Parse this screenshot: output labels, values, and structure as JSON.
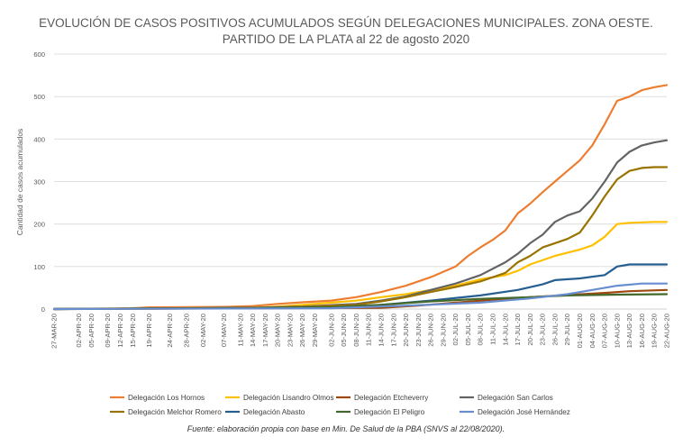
{
  "chart_data": {
    "type": "line",
    "title": "EVOLUCIÓN DE CASOS POSITIVOS ACUMULADOS SEGÚN DELEGACIONES MUNICIPALES. ZONA OESTE.",
    "subtitle": "PARTIDO DE LA PLATA al 22 de agosto 2020",
    "ylabel": "Cantidad de casos acumulados",
    "xlabel": "",
    "ylim": [
      0,
      600
    ],
    "yticks": [
      0,
      100,
      200,
      300,
      400,
      500,
      600
    ],
    "x_start": "2020-03-27",
    "x_end": "2020-08-22",
    "x_tick_labels": [
      "27-MAR-20",
      "02-APR-20",
      "05-APR-20",
      "09-APR-20",
      "12-APR-20",
      "15-APR-20",
      "19-APR-20",
      "24-APR-20",
      "28-APR-20",
      "02-MAY-20",
      "07-MAY-20",
      "11-MAY-20",
      "14-MAY-20",
      "17-MAY-20",
      "20-MAY-20",
      "23-MAY-20",
      "26-MAY-20",
      "29-MAY-20",
      "02-JUN-20",
      "05-JUN-20",
      "08-JUN-20",
      "11-JUN-20",
      "14-JUN-20",
      "17-JUN-20",
      "20-JUN-20",
      "23-JUN-20",
      "26-JUN-20",
      "29-JUN-20",
      "02-JUL-20",
      "05-JUL-20",
      "08-JUL-20",
      "11-JUL-20",
      "14-JUL-20",
      "17-JUL-20",
      "20-JUL-20",
      "23-JUL-20",
      "26-JUL-20",
      "29-JUL-20",
      "01-AUG-20",
      "04-AUG-20",
      "07-AUG-20",
      "10-AUG-20",
      "13-AUG-20",
      "16-AUG-20",
      "19-AUG-20",
      "22-AUG-20"
    ],
    "grid": "horizontal",
    "legend_position": "bottom",
    "series": [
      {
        "name": "Delegación Los Hornos",
        "color": "#ed7d31",
        "points": [
          [
            "27-MAR-20",
            0
          ],
          [
            "15-APR-20",
            2
          ],
          [
            "19-APR-20",
            4
          ],
          [
            "07-MAY-20",
            5
          ],
          [
            "14-MAY-20",
            7
          ],
          [
            "20-MAY-20",
            12
          ],
          [
            "26-MAY-20",
            16
          ],
          [
            "02-JUN-20",
            20
          ],
          [
            "08-JUN-20",
            28
          ],
          [
            "14-JUN-20",
            40
          ],
          [
            "20-JUN-20",
            55
          ],
          [
            "26-JUN-20",
            75
          ],
          [
            "02-JUL-20",
            100
          ],
          [
            "05-JUL-20",
            125
          ],
          [
            "08-JUL-20",
            145
          ],
          [
            "11-JUL-20",
            163
          ],
          [
            "14-JUL-20",
            185
          ],
          [
            "17-JUL-20",
            225
          ],
          [
            "20-JUL-20",
            248
          ],
          [
            "23-JUL-20",
            275
          ],
          [
            "26-JUL-20",
            300
          ],
          [
            "29-JUL-20",
            325
          ],
          [
            "01-AUG-20",
            350
          ],
          [
            "04-AUG-20",
            385
          ],
          [
            "07-AUG-20",
            435
          ],
          [
            "10-AUG-20",
            490
          ],
          [
            "13-AUG-20",
            500
          ],
          [
            "16-AUG-20",
            515
          ],
          [
            "19-AUG-20",
            522
          ],
          [
            "22-AUG-20",
            527
          ]
        ]
      },
      {
        "name": "Delegación Lisandro Olmos",
        "color": "#ffc000",
        "points": [
          [
            "27-MAR-20",
            0
          ],
          [
            "14-MAY-20",
            3
          ],
          [
            "20-MAY-20",
            6
          ],
          [
            "26-MAY-20",
            10
          ],
          [
            "02-JUN-20",
            15
          ],
          [
            "08-JUN-20",
            20
          ],
          [
            "14-JUN-20",
            28
          ],
          [
            "20-JUN-20",
            35
          ],
          [
            "26-JUN-20",
            45
          ],
          [
            "02-JUL-20",
            55
          ],
          [
            "08-JUL-20",
            70
          ],
          [
            "14-JUL-20",
            80
          ],
          [
            "17-JUL-20",
            90
          ],
          [
            "20-JUL-20",
            105
          ],
          [
            "26-JUL-20",
            125
          ],
          [
            "01-AUG-20",
            140
          ],
          [
            "04-AUG-20",
            150
          ],
          [
            "07-AUG-20",
            170
          ],
          [
            "10-AUG-20",
            200
          ],
          [
            "13-AUG-20",
            203
          ],
          [
            "16-AUG-20",
            204
          ],
          [
            "19-AUG-20",
            205
          ],
          [
            "22-AUG-20",
            205
          ]
        ]
      },
      {
        "name": "Delegación Etcheverry",
        "color": "#9e480e",
        "points": [
          [
            "27-MAR-20",
            0
          ],
          [
            "14-JUN-20",
            3
          ],
          [
            "23-JUN-20",
            8
          ],
          [
            "02-JUL-20",
            15
          ],
          [
            "11-JUL-20",
            22
          ],
          [
            "20-JUL-20",
            28
          ],
          [
            "29-JUL-20",
            33
          ],
          [
            "07-AUG-20",
            38
          ],
          [
            "13-AUG-20",
            42
          ],
          [
            "22-AUG-20",
            45
          ]
        ]
      },
      {
        "name": "Delegación San Carlos",
        "color": "#636363",
        "points": [
          [
            "27-MAR-20",
            0
          ],
          [
            "14-MAY-20",
            3
          ],
          [
            "26-MAY-20",
            6
          ],
          [
            "08-JUN-20",
            12
          ],
          [
            "14-JUN-20",
            20
          ],
          [
            "20-JUN-20",
            30
          ],
          [
            "26-JUN-20",
            45
          ],
          [
            "02-JUL-20",
            60
          ],
          [
            "08-JUL-20",
            80
          ],
          [
            "14-JUL-20",
            110
          ],
          [
            "17-JUL-20",
            130
          ],
          [
            "20-JUL-20",
            155
          ],
          [
            "23-JUL-20",
            175
          ],
          [
            "26-JUL-20",
            205
          ],
          [
            "29-JUL-20",
            220
          ],
          [
            "01-AUG-20",
            230
          ],
          [
            "04-AUG-20",
            260
          ],
          [
            "07-AUG-20",
            300
          ],
          [
            "10-AUG-20",
            345
          ],
          [
            "13-AUG-20",
            370
          ],
          [
            "16-AUG-20",
            385
          ],
          [
            "19-AUG-20",
            392
          ],
          [
            "22-AUG-20",
            397
          ]
        ]
      },
      {
        "name": "Delegación Melchor Romero",
        "color": "#997300",
        "points": [
          [
            "27-MAR-20",
            0
          ],
          [
            "14-MAY-20",
            2
          ],
          [
            "26-MAY-20",
            5
          ],
          [
            "08-JUN-20",
            10
          ],
          [
            "14-JUN-20",
            18
          ],
          [
            "20-JUN-20",
            28
          ],
          [
            "26-JUN-20",
            40
          ],
          [
            "02-JUL-20",
            52
          ],
          [
            "08-JUL-20",
            65
          ],
          [
            "14-JUL-20",
            85
          ],
          [
            "17-JUL-20",
            110
          ],
          [
            "20-JUL-20",
            125
          ],
          [
            "23-JUL-20",
            145
          ],
          [
            "26-JUL-20",
            155
          ],
          [
            "29-JUL-20",
            165
          ],
          [
            "01-AUG-20",
            180
          ],
          [
            "04-AUG-20",
            220
          ],
          [
            "07-AUG-20",
            265
          ],
          [
            "10-AUG-20",
            305
          ],
          [
            "13-AUG-20",
            325
          ],
          [
            "16-AUG-20",
            332
          ],
          [
            "19-AUG-20",
            334
          ],
          [
            "22-AUG-20",
            334
          ]
        ]
      },
      {
        "name": "Delegación Abasto",
        "color": "#255e91",
        "points": [
          [
            "27-MAR-20",
            0
          ],
          [
            "02-JUN-20",
            4
          ],
          [
            "14-JUN-20",
            10
          ],
          [
            "26-JUN-20",
            20
          ],
          [
            "08-JUL-20",
            32
          ],
          [
            "17-JUL-20",
            45
          ],
          [
            "23-JUL-20",
            58
          ],
          [
            "26-JUL-20",
            68
          ],
          [
            "01-AUG-20",
            72
          ],
          [
            "07-AUG-20",
            80
          ],
          [
            "10-AUG-20",
            100
          ],
          [
            "13-AUG-20",
            105
          ],
          [
            "22-AUG-20",
            105
          ]
        ]
      },
      {
        "name": "Delegación El Peligro",
        "color": "#43682b",
        "points": [
          [
            "27-MAR-20",
            0
          ],
          [
            "02-JUN-20",
            4
          ],
          [
            "14-JUN-20",
            10
          ],
          [
            "26-JUN-20",
            18
          ],
          [
            "08-JUL-20",
            24
          ],
          [
            "20-JUL-20",
            28
          ],
          [
            "29-JUL-20",
            32
          ],
          [
            "10-AUG-20",
            34
          ],
          [
            "22-AUG-20",
            35
          ]
        ]
      },
      {
        "name": "Delegación José Hernández",
        "color": "#698ed0",
        "points": [
          [
            "27-MAR-20",
            0
          ],
          [
            "02-JUN-20",
            2
          ],
          [
            "20-JUN-20",
            8
          ],
          [
            "08-JUL-20",
            15
          ],
          [
            "20-JUL-20",
            25
          ],
          [
            "29-JUL-20",
            35
          ],
          [
            "04-AUG-20",
            45
          ],
          [
            "10-AUG-20",
            55
          ],
          [
            "16-AUG-20",
            60
          ],
          [
            "22-AUG-20",
            60
          ]
        ]
      }
    ]
  },
  "footer": {
    "source": "Fuente: elaboración propia con base en Min. De Salud de la PBA (SNVS al 22/08/2020)."
  }
}
